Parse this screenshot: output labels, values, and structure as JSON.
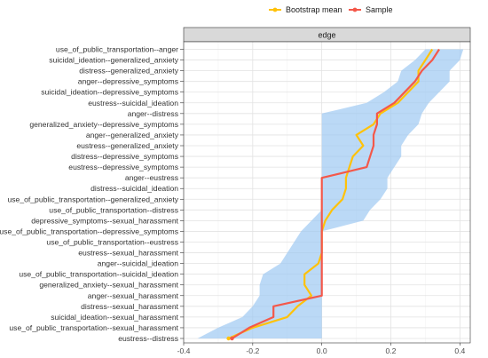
{
  "chart_data": {
    "type": "line",
    "panel_title": "edge",
    "xlabel": "",
    "ylabel": "",
    "xlim": [
      -0.4,
      0.43
    ],
    "x_ticks": [
      -0.4,
      -0.2,
      0.0,
      0.2,
      0.4
    ],
    "x_tick_labels": [
      "-0.4",
      "-0.2",
      "0.0",
      "0.2",
      "0.4"
    ],
    "grid": true,
    "legend_position": "top",
    "categories": [
      "use_of_public_transportation--anger",
      "suicidal_ideation--generalized_anxiety",
      "distress--generalized_anxiety",
      "anger--depressive_symptoms",
      "suicidal_ideation--depressive_symptoms",
      "eustress--suicidal_ideation",
      "anger--distress",
      "generalized_anxiety--depressive_symptoms",
      "anger--generalized_anxiety",
      "eustress--generalized_anxiety",
      "distress--depressive_symptoms",
      "eustress--depressive_symptoms",
      "anger--eustress",
      "distress--suicidal_ideation",
      "use_of_public_transportation--generalized_anxiety",
      "use_of_public_transportation--distress",
      "depressive_symptoms--sexual_harassment",
      "use_of_public_transportation--depressive_symptoms",
      "use_of_public_transportation--eustress",
      "eustress--sexual_harassment",
      "anger--suicidal_ideation",
      "use_of_public_transportation--suicidal_ideation",
      "generalized_anxiety--sexual_harassment",
      "anger--sexual_harassment",
      "distress--sexual_harassment",
      "suicidal_ideation--sexual_harassment",
      "use_of_public_transportation--sexual_harassment",
      "eustress--distress"
    ],
    "series": [
      {
        "name": "Bootstrap mean",
        "color": "#FFC20A",
        "values": [
          0.32,
          0.3,
          0.28,
          0.28,
          0.25,
          0.22,
          0.17,
          0.15,
          0.1,
          0.12,
          0.09,
          0.08,
          0.07,
          0.07,
          0.06,
          0.03,
          0.01,
          0.0,
          0.0,
          0.0,
          -0.01,
          -0.05,
          -0.05,
          -0.03,
          -0.07,
          -0.1,
          -0.2,
          -0.27
        ]
      },
      {
        "name": "Sample",
        "color": "#F4584A",
        "values": [
          0.34,
          0.32,
          0.29,
          0.27,
          0.24,
          0.21,
          0.16,
          0.16,
          0.15,
          0.15,
          0.14,
          0.13,
          0.0,
          0.0,
          0.0,
          0.0,
          0.0,
          0.0,
          0.0,
          0.0,
          0.0,
          0.0,
          0.0,
          0.0,
          -0.14,
          -0.14,
          -0.21,
          -0.26
        ]
      }
    ],
    "ci_band": {
      "color": "#9EC9F2",
      "lower": [
        0.3,
        0.27,
        0.23,
        0.22,
        0.18,
        0.13,
        0.0,
        0.0,
        0.0,
        0.0,
        0.0,
        0.0,
        0.0,
        0.0,
        0.0,
        0.0,
        -0.03,
        -0.06,
        -0.08,
        -0.1,
        -0.12,
        -0.17,
        -0.18,
        -0.18,
        -0.2,
        -0.23,
        -0.3,
        -0.36
      ],
      "upper": [
        0.41,
        0.4,
        0.37,
        0.37,
        0.34,
        0.31,
        0.29,
        0.28,
        0.25,
        0.23,
        0.23,
        0.21,
        0.19,
        0.19,
        0.17,
        0.14,
        0.12,
        0.0,
        0.0,
        0.0,
        0.0,
        0.0,
        0.0,
        0.0,
        0.0,
        0.0,
        0.0,
        0.0
      ]
    }
  }
}
